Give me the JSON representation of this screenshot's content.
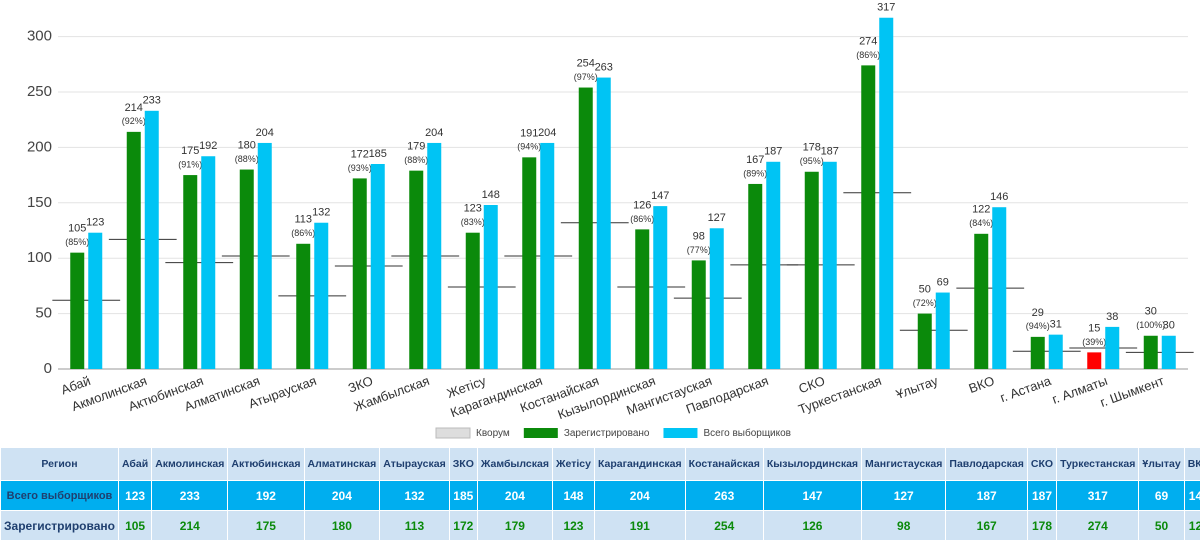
{
  "chart_data": {
    "type": "bar",
    "categories": [
      "Абай",
      "Акмолинская",
      "Актюбинская",
      "Алматинская",
      "Атырауская",
      "ЗКО",
      "Жамбылская",
      "Жетісу",
      "Карагандинская",
      "Костанайская",
      "Кызылординская",
      "Мангистауская",
      "Павлодарская",
      "СКО",
      "Туркестанская",
      "Ұлытау",
      "ВКО",
      "г. Астана",
      "г. Алматы",
      "г. Шымкент"
    ],
    "series": [
      {
        "name": "Кворум",
        "color": "#333333",
        "type": "line",
        "values": [
          62,
          117,
          96,
          102,
          66,
          93,
          102,
          74,
          102,
          132,
          74,
          64,
          94,
          94,
          159,
          35,
          73,
          16,
          19,
          15
        ]
      },
      {
        "name": "Зарегистрировано",
        "color": "#0b8a0b",
        "point_colors": {
          "18": "#ff0000"
        },
        "values": [
          105,
          214,
          175,
          180,
          113,
          172,
          179,
          123,
          191,
          254,
          126,
          98,
          167,
          178,
          274,
          50,
          122,
          29,
          15,
          30
        ],
        "percent_labels": [
          "(85%)",
          "(92%)",
          "(91%)",
          "(88%)",
          "(86%)",
          "(93%)",
          "(88%)",
          "(83%)",
          "(94%)",
          "(97%)",
          "(86%)",
          "(77%)",
          "(89%)",
          "(95%)",
          "(86%)",
          "(72%)",
          "(84%)",
          "(94%)",
          "(39%)",
          "(100%)"
        ]
      },
      {
        "name": "Всего выборщиков",
        "color": "#00c4f4",
        "values": [
          123,
          233,
          192,
          204,
          132,
          185,
          204,
          148,
          204,
          263,
          147,
          127,
          187,
          187,
          317,
          69,
          146,
          31,
          38,
          30
        ]
      }
    ],
    "ylim": [
      0,
      333
    ],
    "yticks": [
      0,
      50,
      100,
      150,
      200,
      250,
      300
    ],
    "grid": true,
    "legend": "bottom"
  },
  "table": {
    "header": "Регион",
    "rows": [
      {
        "label": "Всего выборщиков",
        "series": 2
      },
      {
        "label": "Зарегистрировано",
        "series": 1
      }
    ]
  }
}
